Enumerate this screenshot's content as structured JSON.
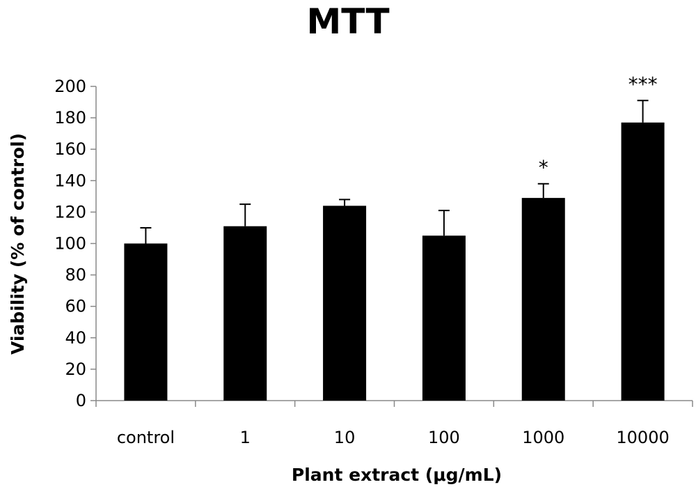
{
  "chart_data": {
    "type": "bar",
    "title": "MTT",
    "xlabel": "Plant extract (μg/mL)",
    "ylabel": "Viability (% of control)",
    "categories": [
      "control",
      "1",
      "10",
      "100",
      "1000",
      "10000"
    ],
    "values": [
      100,
      111,
      124,
      105,
      129,
      177
    ],
    "errors": [
      10,
      14,
      4,
      16,
      9,
      14
    ],
    "significance": [
      "",
      "",
      "",
      "",
      "*",
      "***"
    ],
    "ylim": [
      0,
      200
    ],
    "yticks": [
      0,
      20,
      40,
      60,
      80,
      100,
      120,
      140,
      160,
      180,
      200
    ],
    "grid": false,
    "legend": "none",
    "bar_color": "#000000"
  }
}
